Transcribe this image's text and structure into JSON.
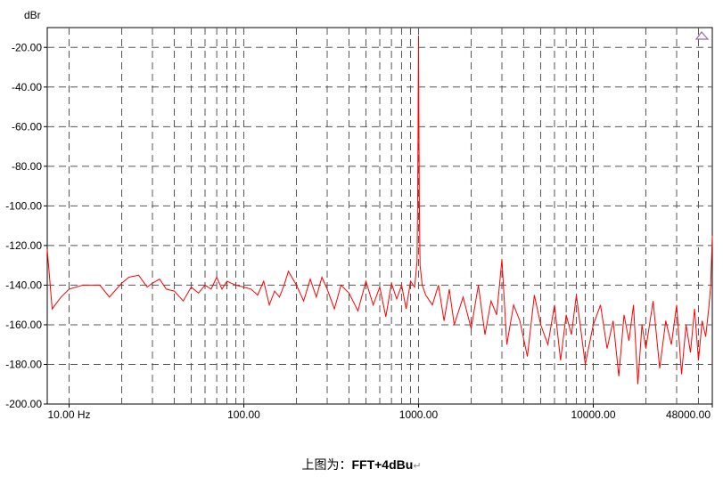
{
  "chart_data": {
    "type": "line",
    "title": "",
    "ylabel": "dBr",
    "xlabel": "",
    "xscale": "log",
    "xlim": [
      7.5,
      48000
    ],
    "ylim": [
      -200,
      -10
    ],
    "grid": true,
    "yticks": [
      {
        "value": -20,
        "label": "-20.00"
      },
      {
        "value": -40,
        "label": "-40.00"
      },
      {
        "value": -60,
        "label": "-60.00"
      },
      {
        "value": -80,
        "label": "-80.00"
      },
      {
        "value": -100,
        "label": "-100.00"
      },
      {
        "value": -120,
        "label": "-120.00"
      },
      {
        "value": -140,
        "label": "-140.00"
      },
      {
        "value": -160,
        "label": "-160.00"
      },
      {
        "value": -180,
        "label": "-180.00"
      },
      {
        "value": -200,
        "label": "-200.00"
      }
    ],
    "xticks": [
      {
        "value": 10,
        "label": "10.00 Hz"
      },
      {
        "value": 100,
        "label": "100.00"
      },
      {
        "value": 1000,
        "label": "1000.00"
      },
      {
        "value": 10000,
        "label": "10000.00"
      },
      {
        "value": 48000,
        "label": "48000.00"
      }
    ],
    "series": [
      {
        "color": "#ff0000",
        "x": [
          7.5,
          8,
          9,
          10,
          12,
          15,
          17,
          20,
          22,
          25,
          28,
          30,
          33,
          36,
          40,
          45,
          50,
          55,
          60,
          65,
          70,
          75,
          80,
          90,
          100,
          110,
          120,
          130,
          140,
          150,
          160,
          170,
          180,
          200,
          220,
          240,
          260,
          280,
          300,
          330,
          360,
          400,
          450,
          500,
          550,
          600,
          650,
          700,
          750,
          800,
          850,
          900,
          950,
          980,
          990,
          1000,
          1010,
          1020,
          1050,
          1100,
          1200,
          1300,
          1400,
          1500,
          1600,
          1800,
          2000,
          2200,
          2400,
          2600,
          2800,
          3000,
          3200,
          3500,
          3800,
          4200,
          4600,
          5000,
          5500,
          6000,
          6500,
          7000,
          7500,
          8000,
          9000,
          10000,
          11000,
          12000,
          13000,
          14000,
          15000,
          16000,
          17000,
          18000,
          19000,
          20000,
          22000,
          24000,
          26000,
          28000,
          30000,
          32000,
          34000,
          36000,
          38000,
          40000,
          42000,
          44000,
          46000,
          47000,
          48000
        ],
        "y": [
          -122,
          -152,
          -146,
          -142,
          -140,
          -140,
          -146,
          -139,
          -136,
          -135,
          -141,
          -139,
          -137,
          -142,
          -143,
          -148,
          -141,
          -144,
          -140,
          -142,
          -136,
          -142,
          -138,
          -140,
          -141,
          -142,
          -145,
          -138,
          -150,
          -143,
          -146,
          -140,
          -133,
          -140,
          -148,
          -137,
          -146,
          -136,
          -142,
          -152,
          -140,
          -144,
          -153,
          -138,
          -150,
          -141,
          -156,
          -139,
          -147,
          -140,
          -152,
          -138,
          -141,
          -128,
          -90,
          -14,
          -95,
          -130,
          -140,
          -145,
          -150,
          -140,
          -158,
          -142,
          -160,
          -146,
          -162,
          -140,
          -165,
          -148,
          -155,
          -127,
          -170,
          -150,
          -158,
          -176,
          -145,
          -160,
          -170,
          -150,
          -178,
          -155,
          -165,
          -145,
          -180,
          -160,
          -150,
          -172,
          -158,
          -186,
          -155,
          -168,
          -150,
          -190,
          -160,
          -172,
          -148,
          -182,
          -158,
          -170,
          -150,
          -185,
          -160,
          -174,
          -152,
          -178,
          -158,
          -166,
          -150,
          -140,
          -115
        ]
      }
    ]
  },
  "caption": {
    "text": "上图为：",
    "title": "FFT+4dBu",
    "mark": "↵"
  },
  "colors": {
    "trace": "#ff0000",
    "grid": "#555555",
    "axis": "#000000",
    "corner_marker": "#9b6aa8"
  }
}
